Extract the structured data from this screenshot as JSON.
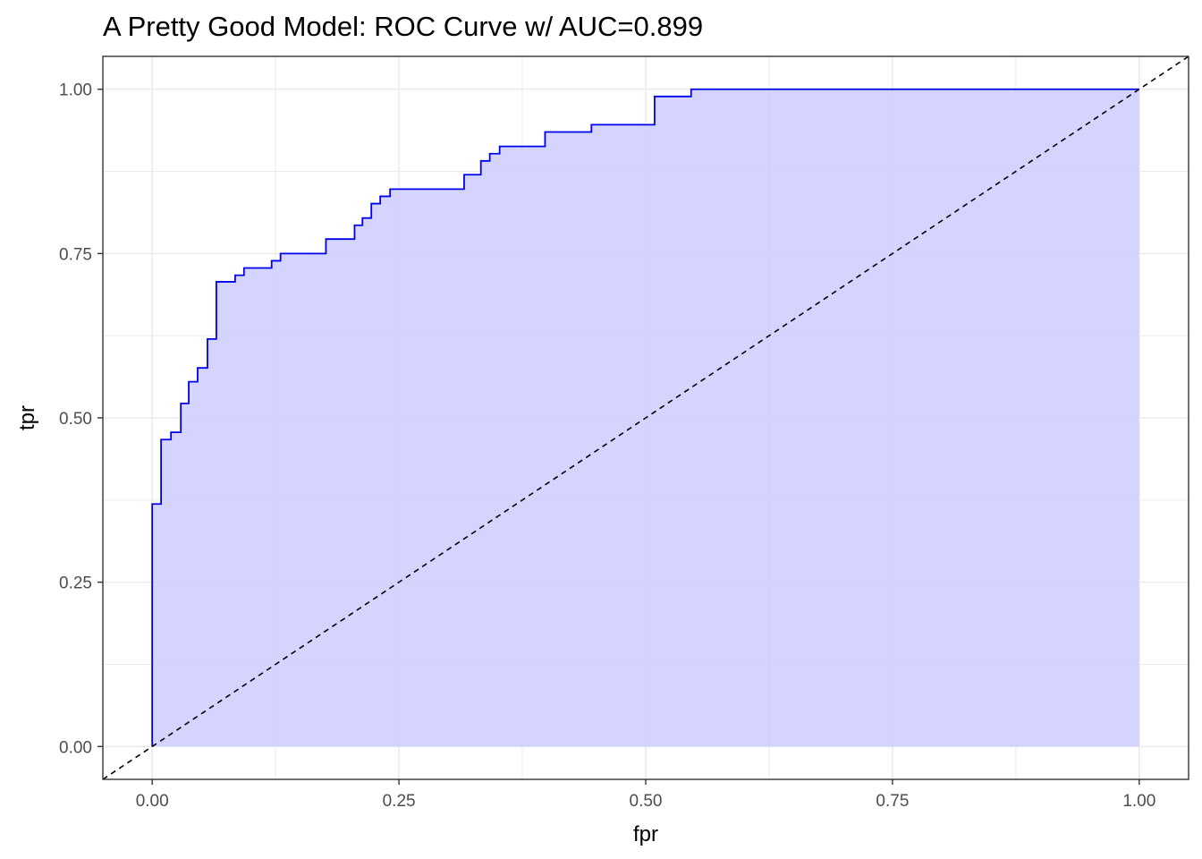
{
  "chart_data": {
    "type": "area",
    "title": "A Pretty Good Model: ROC Curve w/ AUC=0.899",
    "xlabel": "fpr",
    "ylabel": "tpr",
    "xlim": [
      -0.05,
      1.05
    ],
    "ylim": [
      -0.05,
      1.05
    ],
    "x_ticks": [
      0.0,
      0.25,
      0.5,
      0.75,
      1.0
    ],
    "x_tick_labels": [
      "0.00",
      "0.25",
      "0.50",
      "0.75",
      "1.00"
    ],
    "y_ticks": [
      0.0,
      0.25,
      0.5,
      0.75,
      1.0
    ],
    "y_tick_labels": [
      "0.00",
      "0.25",
      "0.50",
      "0.75",
      "1.00"
    ],
    "grid": true,
    "legend": "none",
    "colors": {
      "curve": "#0000ee",
      "fill": "#ccccff",
      "reference": "#000000",
      "grid": "#ebebeb"
    },
    "series": [
      {
        "kind": "step-curve",
        "points": [
          [
            0.0,
            0.0
          ],
          [
            0.0,
            0.369
          ],
          [
            0.009,
            0.369
          ],
          [
            0.009,
            0.467
          ],
          [
            0.019,
            0.467
          ],
          [
            0.019,
            0.478
          ],
          [
            0.029,
            0.478
          ],
          [
            0.029,
            0.522
          ],
          [
            0.037,
            0.522
          ],
          [
            0.037,
            0.555
          ],
          [
            0.046,
            0.555
          ],
          [
            0.046,
            0.576
          ],
          [
            0.056,
            0.576
          ],
          [
            0.056,
            0.62
          ],
          [
            0.065,
            0.62
          ],
          [
            0.065,
            0.707
          ],
          [
            0.084,
            0.707
          ],
          [
            0.084,
            0.717
          ],
          [
            0.093,
            0.717
          ],
          [
            0.093,
            0.728
          ],
          [
            0.121,
            0.728
          ],
          [
            0.121,
            0.739
          ],
          [
            0.13,
            0.739
          ],
          [
            0.13,
            0.75
          ],
          [
            0.176,
            0.75
          ],
          [
            0.176,
            0.772
          ],
          [
            0.205,
            0.772
          ],
          [
            0.205,
            0.793
          ],
          [
            0.213,
            0.793
          ],
          [
            0.213,
            0.804
          ],
          [
            0.222,
            0.804
          ],
          [
            0.222,
            0.826
          ],
          [
            0.231,
            0.826
          ],
          [
            0.231,
            0.837
          ],
          [
            0.241,
            0.837
          ],
          [
            0.241,
            0.848
          ],
          [
            0.316,
            0.848
          ],
          [
            0.316,
            0.87
          ],
          [
            0.333,
            0.87
          ],
          [
            0.333,
            0.891
          ],
          [
            0.342,
            0.891
          ],
          [
            0.342,
            0.902
          ],
          [
            0.352,
            0.902
          ],
          [
            0.352,
            0.913
          ],
          [
            0.398,
            0.913
          ],
          [
            0.398,
            0.935
          ],
          [
            0.445,
            0.935
          ],
          [
            0.445,
            0.946
          ],
          [
            0.509,
            0.946
          ],
          [
            0.509,
            0.989
          ],
          [
            0.546,
            0.989
          ],
          [
            0.546,
            1.0
          ],
          [
            1.0,
            1.0
          ]
        ]
      },
      {
        "kind": "reference-line",
        "points": [
          [
            -0.05,
            -0.05
          ],
          [
            1.05,
            1.05
          ]
        ]
      }
    ]
  }
}
